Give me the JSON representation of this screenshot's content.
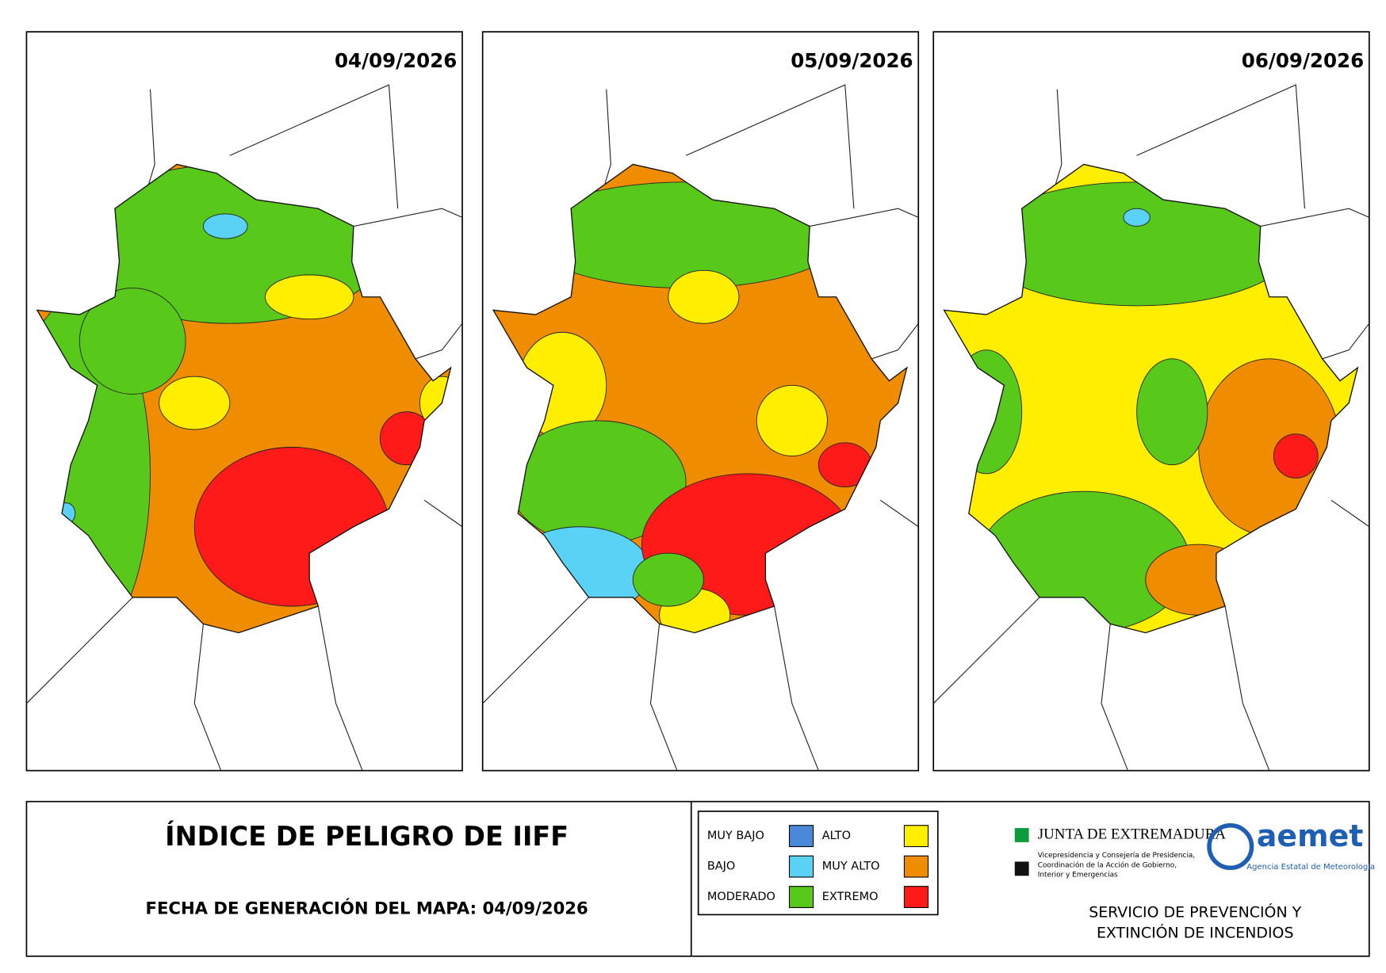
{
  "maps": [
    {
      "date": "04/09/2026"
    },
    {
      "date": "05/09/2026"
    },
    {
      "date": "06/09/2026"
    }
  ],
  "title": "ÍNDICE DE PELIGRO DE IIFF",
  "generation": "FECHA DE GENERACIÓN DEL MAPA: 04/09/2026",
  "legend": [
    {
      "label": "MUY BAJO",
      "color": "#4a88d9"
    },
    {
      "label": "BAJO",
      "color": "#5ad2f5"
    },
    {
      "label": "MODERADO",
      "color": "#58c81a"
    },
    {
      "label": "ALTO",
      "color": "#ffee00"
    },
    {
      "label": "MUY ALTO",
      "color": "#f08c00"
    },
    {
      "label": "EXTREMO",
      "color": "#ff1a1a"
    }
  ],
  "junta": {
    "name": "JUNTA DE EXTREMADURA",
    "lines": [
      "Vicepresidencia y Consejería de Presidencia,",
      "Coordinación de la Acción de Gobierno,",
      "Interior y Emergencias"
    ]
  },
  "aemet": {
    "name": "aemet",
    "subtitle": "Agencia Estatal de Meteorología"
  },
  "service": [
    "SERVICIO DE PREVENCIÓN Y",
    "EXTINCIÓN DE INCENDIOS"
  ]
}
